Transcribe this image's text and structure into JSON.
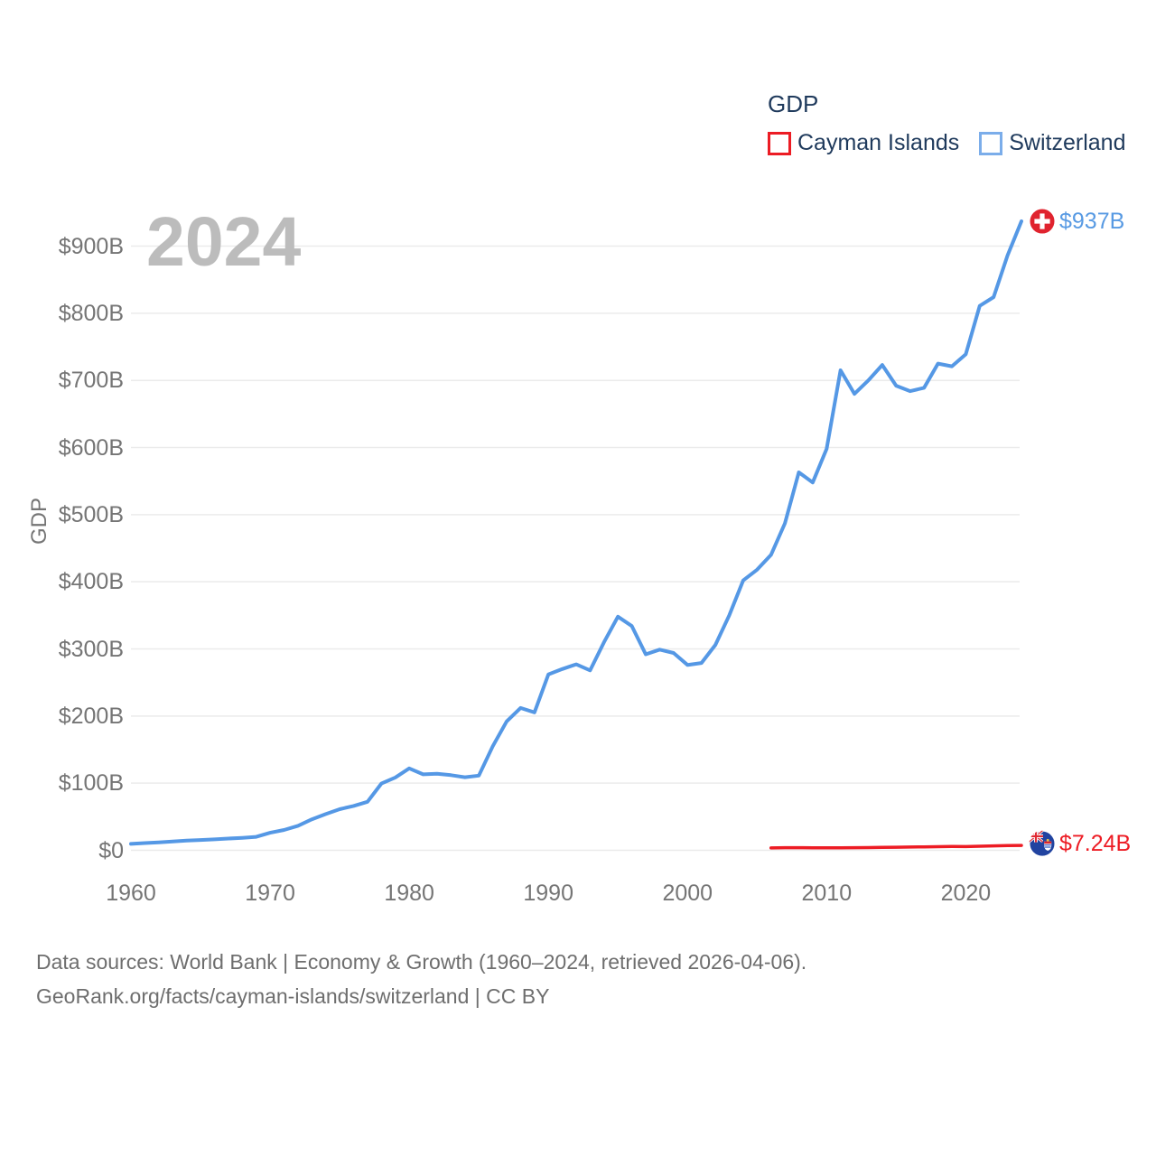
{
  "legend": {
    "title": "GDP",
    "items": [
      {
        "label": "Cayman Islands",
        "color": "#ec1c24"
      },
      {
        "label": "Switzerland",
        "color": "#7badea"
      }
    ]
  },
  "watermark": "2024",
  "y_axis": {
    "title": "GDP",
    "ticks": [
      {
        "label": "$0",
        "value": 0
      },
      {
        "label": "$100B",
        "value": 100
      },
      {
        "label": "$200B",
        "value": 200
      },
      {
        "label": "$300B",
        "value": 300
      },
      {
        "label": "$400B",
        "value": 400
      },
      {
        "label": "$500B",
        "value": 500
      },
      {
        "label": "$600B",
        "value": 600
      },
      {
        "label": "$700B",
        "value": 700
      },
      {
        "label": "$800B",
        "value": 800
      },
      {
        "label": "$900B",
        "value": 900
      }
    ]
  },
  "x_axis": {
    "ticks": [
      {
        "label": "1960",
        "year": 1960
      },
      {
        "label": "1970",
        "year": 1970
      },
      {
        "label": "1980",
        "year": 1980
      },
      {
        "label": "1990",
        "year": 1990
      },
      {
        "label": "2000",
        "year": 2000
      },
      {
        "label": "2010",
        "year": 2010
      },
      {
        "label": "2020",
        "year": 2020
      }
    ]
  },
  "end_labels": {
    "switzerland": "$937B",
    "cayman": "$7.24B"
  },
  "footer": {
    "line1": "Data sources: World Bank | Economy & Growth (1960–2024, retrieved 2026-04-06).",
    "line2": "GeoRank.org/facts/cayman-islands/switzerland | CC BY"
  },
  "colors": {
    "switzerland_line": "#5598e5",
    "cayman_line": "#ed1c24",
    "grid": "#ebebeb",
    "axis_text": "#757575",
    "legend_text": "#1f3a5c",
    "watermark": "#bcbcbc",
    "footer_text": "#6e6e6e"
  },
  "chart_data": {
    "type": "line",
    "title": "GDP",
    "xlabel": "",
    "ylabel": "GDP",
    "xlim": [
      1960,
      2024
    ],
    "ylim": [
      0,
      960
    ],
    "grid": "horizontal-only",
    "legend_position": "top-right",
    "series": [
      {
        "name": "Switzerland",
        "color": "#5598e5",
        "end_label": "$937B",
        "x": [
          1960,
          1961,
          1962,
          1963,
          1964,
          1965,
          1966,
          1967,
          1968,
          1969,
          1970,
          1971,
          1972,
          1973,
          1974,
          1975,
          1976,
          1977,
          1978,
          1979,
          1980,
          1981,
          1982,
          1983,
          1984,
          1985,
          1986,
          1987,
          1988,
          1989,
          1990,
          1991,
          1992,
          1993,
          1994,
          1995,
          1996,
          1997,
          1998,
          1999,
          2000,
          2001,
          2002,
          2003,
          2004,
          2005,
          2006,
          2007,
          2008,
          2009,
          2010,
          2011,
          2012,
          2013,
          2014,
          2015,
          2016,
          2017,
          2018,
          2019,
          2020,
          2021,
          2022,
          2023,
          2024
        ],
        "values": [
          9.5,
          10.7,
          11.9,
          13.0,
          14.4,
          15.3,
          16.3,
          17.5,
          18.6,
          20.1,
          26.1,
          30.3,
          36.4,
          46.1,
          54.0,
          61.2,
          66.1,
          72.2,
          99.4,
          108.4,
          122.0,
          113.1,
          114.0,
          111.9,
          108.9,
          111.3,
          155.0,
          192.0,
          212.0,
          205.5,
          262.0,
          270.0,
          277.0,
          268.0,
          310.0,
          348.0,
          334.0,
          292.0,
          299.0,
          294.0,
          276.0,
          279.0,
          306.0,
          350.0,
          402.0,
          418.0,
          440.0,
          487.0,
          563.0,
          548.0,
          598.0,
          715.0,
          680.0,
          700.0,
          723.0,
          692.0,
          684.0,
          689.0,
          725.0,
          721.0,
          739.0,
          811.0,
          824.0,
          886.0,
          937.0
        ]
      },
      {
        "name": "Cayman Islands",
        "color": "#ed1c24",
        "end_label": "$7.24B",
        "x": [
          2006,
          2007,
          2008,
          2009,
          2010,
          2011,
          2012,
          2013,
          2014,
          2015,
          2016,
          2017,
          2018,
          2019,
          2020,
          2021,
          2022,
          2023,
          2024
        ],
        "values": [
          3.55,
          3.9,
          3.95,
          3.73,
          3.69,
          3.76,
          3.88,
          4.04,
          4.28,
          4.51,
          4.78,
          5.05,
          5.42,
          5.7,
          5.45,
          6.04,
          6.55,
          6.95,
          7.24
        ]
      }
    ]
  }
}
